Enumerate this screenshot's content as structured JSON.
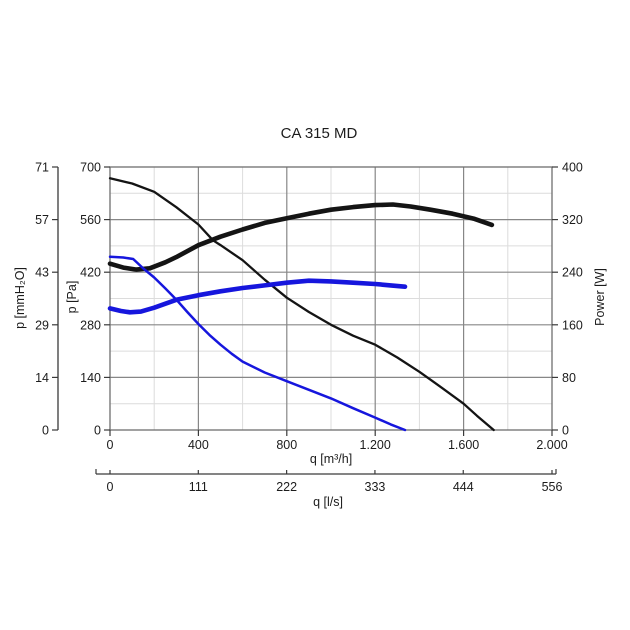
{
  "title": "CA 315 MD",
  "chart_data": {
    "type": "line",
    "title": "CA 315 MD",
    "grid": {
      "major_color": "#878787",
      "minor_color": "#dcdcdc",
      "frame_color": "#6e6e6e"
    },
    "axes": {
      "x_m3h": {
        "label": "q [m³/h]",
        "min": 0,
        "max": 2000,
        "ticks": [
          0,
          400,
          800,
          1200,
          1600,
          2000
        ],
        "tick_labels": [
          "0",
          "400",
          "800",
          "1.200",
          "1.600",
          "2.000"
        ],
        "minor_step": 200
      },
      "x_ls": {
        "label": "q [l/s]",
        "ticks": [
          0,
          111,
          222,
          333,
          444,
          556
        ],
        "tick_labels": [
          "0",
          "111",
          "222",
          "333",
          "444",
          "556"
        ]
      },
      "y_pa": {
        "label": "p [Pa]",
        "min": 0,
        "max": 700,
        "ticks": [
          0,
          140,
          280,
          420,
          560,
          700
        ],
        "tick_labels": [
          "0",
          "140",
          "280",
          "420",
          "560",
          "700"
        ],
        "minor_step": 70
      },
      "y_mmh2o": {
        "label": "p [mmH₂O]",
        "ticks": [
          0,
          14,
          29,
          43,
          57,
          71
        ],
        "tick_labels": [
          "0",
          "14",
          "29",
          "43",
          "57",
          "71"
        ]
      },
      "y_w": {
        "label": "Power [W]",
        "min": 0,
        "max": 400,
        "ticks": [
          0,
          80,
          160,
          240,
          320,
          400
        ],
        "tick_labels": [
          "0",
          "80",
          "160",
          "240",
          "320",
          "400"
        ]
      }
    },
    "series": [
      {
        "name": "pressure-high-speed",
        "color": "#141414",
        "width": 2.3,
        "y_axis": "pa",
        "points": [
          [
            0,
            670
          ],
          [
            100,
            656
          ],
          [
            200,
            634
          ],
          [
            300,
            593
          ],
          [
            400,
            547
          ],
          [
            466,
            505
          ],
          [
            500,
            492
          ],
          [
            600,
            452
          ],
          [
            700,
            400
          ],
          [
            800,
            352
          ],
          [
            900,
            314
          ],
          [
            1000,
            280
          ],
          [
            1100,
            251
          ],
          [
            1200,
            227
          ],
          [
            1300,
            193
          ],
          [
            1400,
            155
          ],
          [
            1500,
            113
          ],
          [
            1600,
            70
          ],
          [
            1660,
            38
          ],
          [
            1736,
            0
          ]
        ]
      },
      {
        "name": "power-high-speed",
        "color": "#141414",
        "width": 4.6,
        "y_axis": "w",
        "points": [
          [
            0,
            253
          ],
          [
            60,
            247
          ],
          [
            120,
            244
          ],
          [
            180,
            246
          ],
          [
            250,
            255
          ],
          [
            300,
            263
          ],
          [
            400,
            281
          ],
          [
            500,
            294
          ],
          [
            600,
            305
          ],
          [
            700,
            315
          ],
          [
            800,
            322
          ],
          [
            900,
            329
          ],
          [
            1000,
            335
          ],
          [
            1100,
            339
          ],
          [
            1200,
            342
          ],
          [
            1280,
            343
          ],
          [
            1360,
            340
          ],
          [
            1450,
            335
          ],
          [
            1550,
            329
          ],
          [
            1650,
            321
          ],
          [
            1728,
            312
          ]
        ]
      },
      {
        "name": "pressure-low-speed",
        "color": "#1616dd",
        "width": 2.5,
        "y_axis": "pa",
        "points": [
          [
            0,
            461
          ],
          [
            60,
            459
          ],
          [
            105,
            455
          ],
          [
            150,
            430
          ],
          [
            200,
            406
          ],
          [
            250,
            377
          ],
          [
            300,
            347
          ],
          [
            350,
            314
          ],
          [
            400,
            282
          ],
          [
            450,
            253
          ],
          [
            500,
            227
          ],
          [
            550,
            203
          ],
          [
            600,
            182
          ],
          [
            700,
            153
          ],
          [
            800,
            130
          ],
          [
            900,
            107
          ],
          [
            1000,
            84
          ],
          [
            1100,
            58
          ],
          [
            1200,
            33
          ],
          [
            1270,
            15
          ],
          [
            1335,
            0
          ]
        ]
      },
      {
        "name": "power-low-speed",
        "color": "#1616dd",
        "width": 4.6,
        "y_axis": "w",
        "points": [
          [
            0,
            185
          ],
          [
            50,
            181
          ],
          [
            90,
            179
          ],
          [
            140,
            180
          ],
          [
            200,
            186
          ],
          [
            300,
            198
          ],
          [
            400,
            205
          ],
          [
            500,
            211
          ],
          [
            600,
            216
          ],
          [
            700,
            220
          ],
          [
            800,
            224
          ],
          [
            900,
            227
          ],
          [
            1000,
            226
          ],
          [
            1100,
            224
          ],
          [
            1200,
            222
          ],
          [
            1270,
            220
          ],
          [
            1335,
            218
          ]
        ]
      }
    ]
  }
}
